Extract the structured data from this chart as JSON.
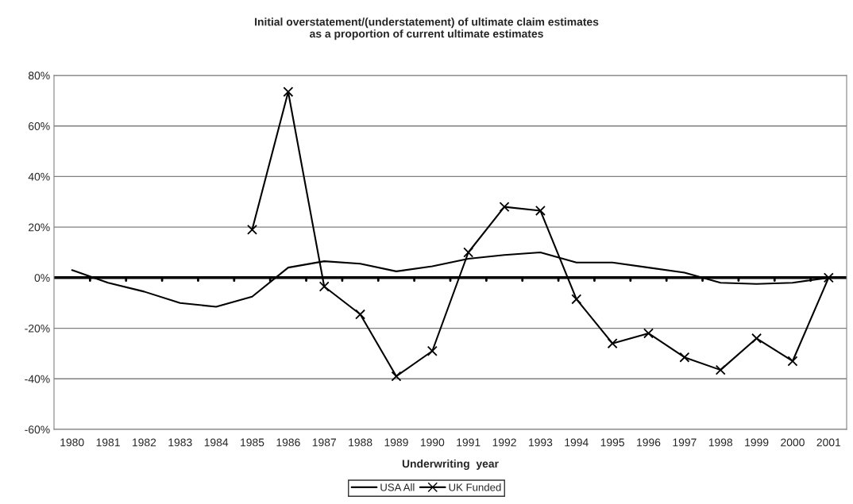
{
  "chart_data": {
    "type": "line",
    "title": "Initial overstatement/(understatement) of ultimate claim estimates\nas a proportion of current ultimate estimates",
    "xlabel": "Underwriting  year",
    "categories": [
      "1980",
      "1981",
      "1982",
      "1983",
      "1984",
      "1985",
      "1986",
      "1987",
      "1988",
      "1989",
      "1990",
      "1991",
      "1992",
      "1993",
      "1994",
      "1995",
      "1996",
      "1997",
      "1998",
      "1999",
      "2000",
      "2001"
    ],
    "series": [
      {
        "name": "USA All",
        "color": "#000000",
        "marker": "none",
        "values": [
          3,
          -2,
          -5.5,
          -10,
          -11.5,
          -7.5,
          4,
          6.5,
          5.5,
          2.5,
          4.5,
          7.5,
          9,
          10,
          6,
          6,
          4,
          2,
          -2,
          -2.5,
          -2,
          0
        ]
      },
      {
        "name": "UK Funded",
        "color": "#000000",
        "marker": "cross",
        "values": [
          null,
          null,
          null,
          null,
          null,
          19,
          73.5,
          -3.5,
          -14.5,
          -39,
          -29,
          10,
          28,
          26.5,
          -8.5,
          -26,
          -22,
          -31.5,
          -36.5,
          -24,
          -33,
          0
        ]
      }
    ],
    "ylim": [
      -60,
      80
    ],
    "yticks": [
      {
        "value": -60,
        "label": "-60%"
      },
      {
        "value": -40,
        "label": "-40%"
      },
      {
        "value": -20,
        "label": "-20%"
      },
      {
        "value": 0,
        "label": "0%"
      },
      {
        "value": 20,
        "label": "20%"
      },
      {
        "value": 40,
        "label": "40%"
      },
      {
        "value": 60,
        "label": "60%"
      },
      {
        "value": 80,
        "label": "80%"
      }
    ],
    "ref_lines": [
      {
        "axis": "y",
        "value": 0,
        "color": "#000000"
      }
    ],
    "grid": "y",
    "legend": "bottom"
  }
}
